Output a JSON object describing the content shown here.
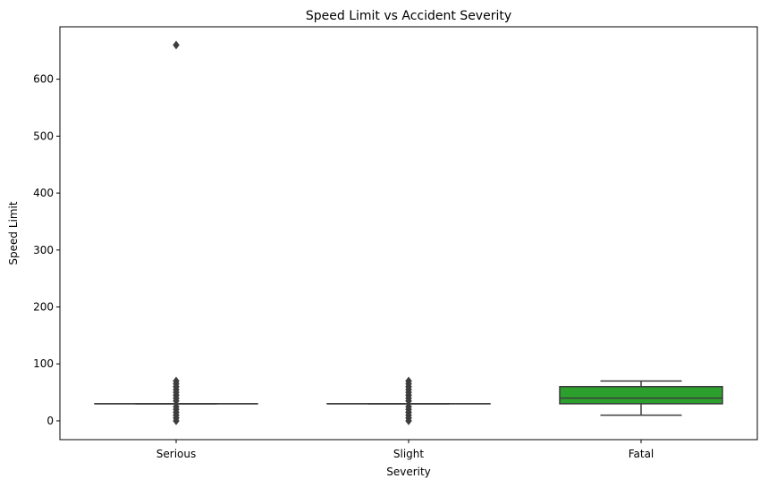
{
  "chart_data": {
    "type": "box",
    "title": "Speed Limit vs Accident Severity",
    "xlabel": "Severity",
    "ylabel": "Speed Limit",
    "categories": [
      "Serious",
      "Slight",
      "Fatal"
    ],
    "ylim": [
      -33,
      692
    ],
    "yticks": [
      0,
      100,
      200,
      300,
      400,
      500,
      600
    ],
    "grid": false,
    "boxes": [
      {
        "category": "Serious",
        "color": "#1f77b4",
        "whisker_low": 30,
        "q1": 30,
        "median": 30,
        "q3": 30,
        "whisker_high": 30,
        "outliers": [
          0,
          5,
          10,
          15,
          20,
          25,
          35,
          40,
          45,
          50,
          55,
          60,
          65,
          70,
          660
        ]
      },
      {
        "category": "Slight",
        "color": "#ff7f0e",
        "whisker_low": 30,
        "q1": 30,
        "median": 30,
        "q3": 30,
        "whisker_high": 30,
        "outliers": [
          0,
          5,
          10,
          15,
          20,
          25,
          35,
          40,
          45,
          50,
          55,
          60,
          65,
          70
        ]
      },
      {
        "category": "Fatal",
        "color": "#2ca02c",
        "whisker_low": 10,
        "q1": 30,
        "median": 40,
        "q3": 60,
        "whisker_high": 70,
        "outliers": []
      }
    ]
  }
}
